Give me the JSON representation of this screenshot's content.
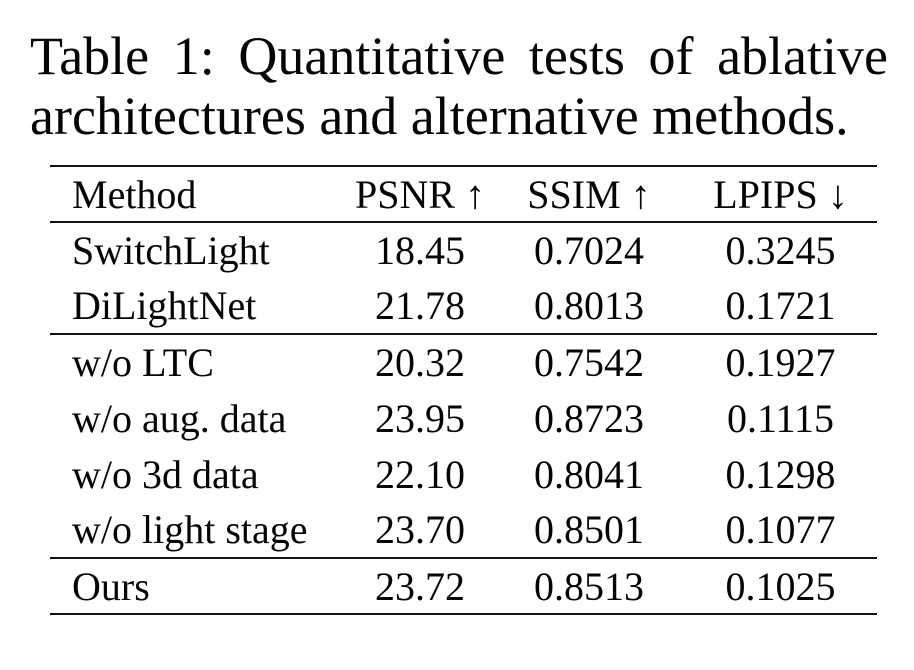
{
  "caption": {
    "line1": "Table 1: Quantitative tests of ablative",
    "line2": "architectures and alternative methods."
  },
  "table": {
    "headers": [
      "Method",
      "PSNR ↑",
      "SSIM ↑",
      "LPIPS ↓"
    ],
    "rows": [
      {
        "method": "SwitchLight",
        "psnr": "18.45",
        "ssim": "0.7024",
        "lpips": "0.3245"
      },
      {
        "method": "DiLightNet",
        "psnr": "21.78",
        "ssim": "0.8013",
        "lpips": "0.1721"
      },
      {
        "method": "w/o LTC",
        "psnr": "20.32",
        "ssim": "0.7542",
        "lpips": "0.1927"
      },
      {
        "method": "w/o aug. data",
        "psnr": "23.95",
        "ssim": "0.8723",
        "lpips": "0.1115"
      },
      {
        "method": "w/o 3d data",
        "psnr": "22.10",
        "ssim": "0.8041",
        "lpips": "0.1298"
      },
      {
        "method": "w/o light stage",
        "psnr": "23.70",
        "ssim": "0.8501",
        "lpips": "0.1077"
      },
      {
        "method": "Ours",
        "psnr": "23.72",
        "ssim": "0.8513",
        "lpips": "0.1025"
      }
    ]
  },
  "colors": {
    "text": "#050505",
    "rule": "#141414",
    "background": "#ffffff"
  },
  "chart_data": {
    "type": "table",
    "title": "Table 1: Quantitative tests of ablative architectures and alternative methods.",
    "columns": [
      "Method",
      "PSNR",
      "SSIM",
      "LPIPS"
    ],
    "column_direction_hints": [
      "",
      "higher-better",
      "higher-better",
      "lower-better"
    ],
    "groups": [
      {
        "rows": [
          [
            "SwitchLight",
            18.45,
            0.7024,
            0.3245
          ],
          [
            "DiLightNet",
            21.78,
            0.8013,
            0.1721
          ]
        ]
      },
      {
        "rows": [
          [
            "w/o LTC",
            20.32,
            0.7542,
            0.1927
          ],
          [
            "w/o aug. data",
            23.95,
            0.8723,
            0.1115
          ],
          [
            "w/o 3d data",
            22.1,
            0.8041,
            0.1298
          ],
          [
            "w/o light stage",
            23.7,
            0.8501,
            0.1077
          ]
        ]
      },
      {
        "rows": [
          [
            "Ours",
            23.72,
            0.8513,
            0.1025
          ]
        ]
      }
    ]
  }
}
